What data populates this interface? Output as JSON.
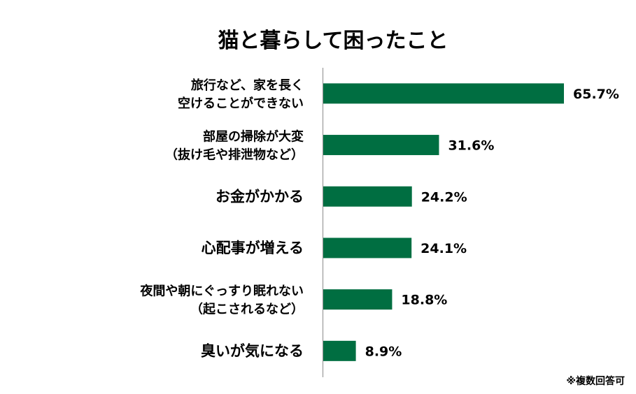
{
  "chart_data": {
    "type": "bar",
    "orientation": "horizontal",
    "title": "猫と暮らして困ったこと",
    "categories": [
      [
        "旅行など、家を長く",
        "空けることができない"
      ],
      [
        "部屋の掃除が大変",
        "（抜け毛や排泄物など）"
      ],
      [
        "お金がかかる"
      ],
      [
        "心配事が増える"
      ],
      [
        "夜間や朝にぐっすり眠れない",
        "（起こされるなど）"
      ],
      [
        "臭いが気になる"
      ]
    ],
    "values": [
      65.7,
      31.6,
      24.2,
      24.1,
      18.8,
      8.9
    ],
    "value_labels": [
      "65.7%",
      "31.6%",
      "24.2%",
      "24.1%",
      "18.8%",
      "8.9%"
    ],
    "xlim": [
      0,
      100
    ],
    "bar_color": "#006e41",
    "grid": false,
    "note": "※複数回答可"
  }
}
